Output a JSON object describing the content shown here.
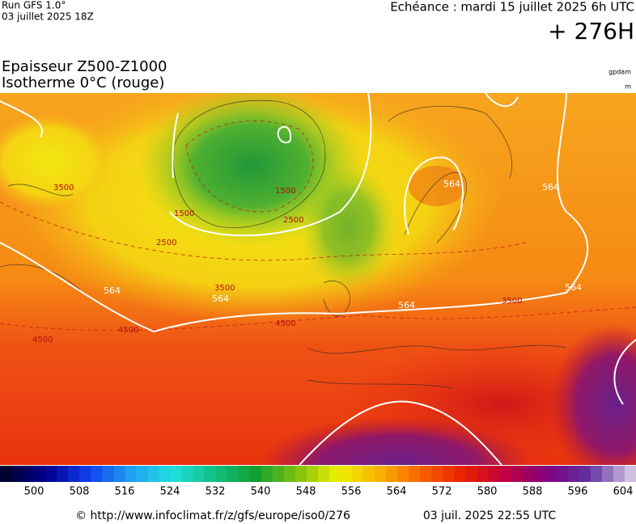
{
  "header": {
    "run": "Run GFS 1.0°",
    "run_date": "03 juillet 2025 18Z",
    "valid": "Echéance : mardi 15 juillet 2025 6h UTC",
    "lead": "+ 276H"
  },
  "legend": {
    "title": "Epaisseur Z500-Z1000",
    "subtitle": "Isotherme 0°C (rouge)",
    "unit_thickness": "gpdam",
    "unit_iso": "m"
  },
  "colorbar": {
    "ticks": [
      500,
      508,
      516,
      524,
      532,
      540,
      548,
      556,
      564,
      572,
      580,
      588,
      596,
      604
    ],
    "colors": [
      "#000030",
      "#000090",
      "#1040f0",
      "#20a0f0",
      "#20e0e0",
      "#10c080",
      "#10a030",
      "#80c010",
      "#f0f000",
      "#f8b000",
      "#f86000",
      "#e82000",
      "#c00040",
      "#800080",
      "#6030a0",
      "#d0c0e0"
    ]
  },
  "contour_labels": [
    "564",
    "564",
    "564",
    "564",
    "564",
    "564",
    "1500",
    "1500",
    "2500",
    "2500",
    "3500",
    "3500",
    "3500",
    "4500",
    "4500",
    "4500"
  ],
  "footer": {
    "url": "© http://www.infoclimat.fr/z/gfs/europe/iso0/276",
    "timestamp": "03 juil. 2025 22:55 UTC"
  }
}
